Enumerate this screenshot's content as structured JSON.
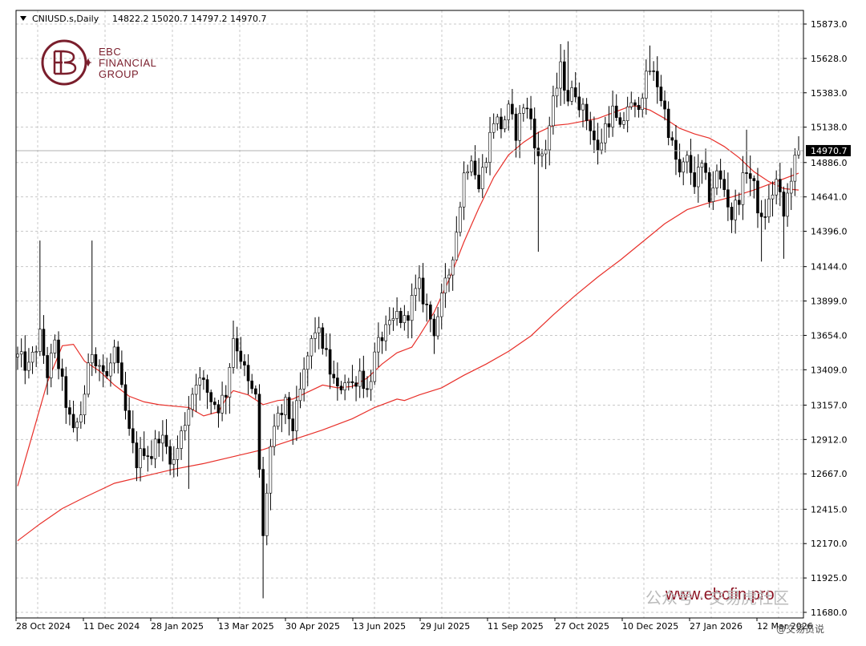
{
  "header": {
    "symbol": "CNIUSD.s,Daily",
    "ohlc": "14822.2 15020.7 14797.2 14970.7"
  },
  "logo": {
    "line1": "EBC",
    "line2": "FINANCIAL",
    "line3": "GROUP"
  },
  "watermark": {
    "url": "www.ebcfin.pro",
    "wechat": "公众号 · 交易虎社区",
    "weibo": "@交易员说"
  },
  "colors": {
    "candles": "#000000",
    "ma_fast": "#e8302a",
    "ma_slow": "#e8302a",
    "grid": "#c8c8c8",
    "current_price_line": "#b0b0b0",
    "current_price_box": "#000000",
    "logo": "#7a1e2c"
  },
  "chart_data": {
    "type": "candlestick",
    "symbol": "CNIUSD.s",
    "timeframe": "Daily",
    "current_price": 14970.7,
    "current_price_label": "14970.7",
    "ylim": [
      11680,
      15980
    ],
    "y_ticks": [
      "15873.0",
      "15628.0",
      "15383.0",
      "15138.0",
      "14886.0",
      "14641.0",
      "14396.0",
      "14144.0",
      "13899.0",
      "13654.0",
      "13409.0",
      "13157.0",
      "12912.0",
      "12667.0",
      "12415.0",
      "12170.0",
      "11925.0",
      "11680.0"
    ],
    "y_tick_values": [
      15873,
      15628,
      15383,
      15138,
      14886,
      14641,
      14396,
      14144,
      13899,
      13654,
      13409,
      13157,
      12912,
      12667,
      12415,
      12170,
      11925,
      11680
    ],
    "x_ticks": [
      "28 Oct 2024",
      "11 Dec 2024",
      "28 Jan 2025",
      "13 Mar 2025",
      "30 Apr 2025",
      "13 Jun 2025",
      "29 Jul 2025",
      "11 Sep 2025",
      "27 Oct 2025",
      "10 Dec 2025",
      "27 Jan 2026",
      "12 Mar 2026"
    ],
    "grid": true,
    "close_path": [
      [
        0,
        13500
      ],
      [
        3,
        13420
      ],
      [
        6,
        13650
      ],
      [
        8,
        13380
      ],
      [
        10,
        13580
      ],
      [
        12,
        13300
      ],
      [
        14,
        13050
      ],
      [
        15,
        12950
      ],
      [
        17,
        13100
      ],
      [
        18,
        13250
      ],
      [
        20,
        13550
      ],
      [
        22,
        13450
      ],
      [
        24,
        13350
      ],
      [
        26,
        13550
      ],
      [
        28,
        13250
      ],
      [
        30,
        12950
      ],
      [
        32,
        12750
      ],
      [
        34,
        12850
      ],
      [
        36,
        12800
      ],
      [
        38,
        12950
      ],
      [
        40,
        12850
      ],
      [
        42,
        12750
      ],
      [
        44,
        12950
      ],
      [
        46,
        13150
      ],
      [
        48,
        13350
      ],
      [
        50,
        13300
      ],
      [
        52,
        13200
      ],
      [
        54,
        13150
      ],
      [
        56,
        13250
      ],
      [
        58,
        13650
      ],
      [
        60,
        13500
      ],
      [
        62,
        13300
      ],
      [
        64,
        13200
      ],
      [
        65,
        12700
      ],
      [
        66,
        12200
      ],
      [
        67,
        12550
      ],
      [
        68,
        12850
      ],
      [
        70,
        13050
      ],
      [
        72,
        13150
      ],
      [
        74,
        13000
      ],
      [
        76,
        13250
      ],
      [
        78,
        13500
      ],
      [
        80,
        13700
      ],
      [
        82,
        13600
      ],
      [
        84,
        13400
      ],
      [
        86,
        13250
      ],
      [
        88,
        13350
      ],
      [
        90,
        13300
      ],
      [
        92,
        13400
      ],
      [
        94,
        13250
      ],
      [
        96,
        13500
      ],
      [
        98,
        13650
      ],
      [
        100,
        13700
      ],
      [
        102,
        13800
      ],
      [
        104,
        13750
      ],
      [
        106,
        13900
      ],
      [
        108,
        14000
      ],
      [
        110,
        13850
      ],
      [
        112,
        13700
      ],
      [
        114,
        13900
      ],
      [
        116,
        14100
      ],
      [
        118,
        14400
      ],
      [
        120,
        14800
      ],
      [
        122,
        14950
      ],
      [
        124,
        14700
      ],
      [
        126,
        14950
      ],
      [
        128,
        15200
      ],
      [
        130,
        15150
      ],
      [
        132,
        15250
      ],
      [
        134,
        15100
      ],
      [
        136,
        15300
      ],
      [
        138,
        15200
      ],
      [
        140,
        14900
      ],
      [
        142,
        15000
      ],
      [
        144,
        15300
      ],
      [
        146,
        15550
      ],
      [
        148,
        15350
      ],
      [
        150,
        15400
      ],
      [
        152,
        15250
      ],
      [
        154,
        15150
      ],
      [
        156,
        14950
      ],
      [
        158,
        15150
      ],
      [
        160,
        15250
      ],
      [
        162,
        15100
      ],
      [
        164,
        15300
      ],
      [
        166,
        15250
      ],
      [
        168,
        15400
      ],
      [
        170,
        15550
      ],
      [
        172,
        15450
      ],
      [
        174,
        15250
      ],
      [
        176,
        15000
      ],
      [
        178,
        14800
      ],
      [
        180,
        14900
      ],
      [
        182,
        14750
      ],
      [
        184,
        14850
      ],
      [
        186,
        14650
      ],
      [
        188,
        14800
      ],
      [
        190,
        14700
      ],
      [
        192,
        14500
      ],
      [
        194,
        14650
      ],
      [
        196,
        14850
      ],
      [
        198,
        14700
      ],
      [
        200,
        14450
      ],
      [
        202,
        14600
      ],
      [
        204,
        14750
      ],
      [
        206,
        14500
      ],
      [
        208,
        14800
      ],
      [
        210,
        14970.7
      ]
    ],
    "series": [
      {
        "name": "",
        "path": [
          [
            0,
            12580
          ],
          [
            4,
            12950
          ],
          [
            8,
            13320
          ],
          [
            12,
            13580
          ],
          [
            15,
            13590
          ],
          [
            18,
            13470
          ],
          [
            22,
            13400
          ],
          [
            26,
            13300
          ],
          [
            30,
            13220
          ],
          [
            34,
            13180
          ],
          [
            38,
            13160
          ],
          [
            42,
            13150
          ],
          [
            46,
            13140
          ],
          [
            50,
            13080
          ],
          [
            54,
            13110
          ],
          [
            56,
            13200
          ],
          [
            58,
            13260
          ],
          [
            62,
            13230
          ],
          [
            66,
            13160
          ],
          [
            70,
            13190
          ],
          [
            74,
            13200
          ],
          [
            78,
            13250
          ],
          [
            82,
            13300
          ],
          [
            86,
            13280
          ],
          [
            90,
            13290
          ],
          [
            94,
            13350
          ],
          [
            98,
            13450
          ],
          [
            102,
            13530
          ],
          [
            106,
            13570
          ],
          [
            108,
            13650
          ],
          [
            112,
            13820
          ],
          [
            116,
            14050
          ],
          [
            120,
            14320
          ],
          [
            124,
            14560
          ],
          [
            128,
            14780
          ],
          [
            132,
            14940
          ],
          [
            136,
            15030
          ],
          [
            140,
            15100
          ],
          [
            144,
            15150
          ],
          [
            148,
            15160
          ],
          [
            152,
            15180
          ],
          [
            156,
            15200
          ],
          [
            160,
            15240
          ],
          [
            164,
            15280
          ],
          [
            166,
            15290
          ],
          [
            170,
            15260
          ],
          [
            174,
            15200
          ],
          [
            178,
            15130
          ],
          [
            182,
            15090
          ],
          [
            186,
            15060
          ],
          [
            190,
            15000
          ],
          [
            194,
            14920
          ],
          [
            198,
            14820
          ],
          [
            202,
            14750
          ],
          [
            206,
            14700
          ],
          [
            210,
            14690
          ]
        ]
      },
      {
        "name": "",
        "path": [
          [
            0,
            12190
          ],
          [
            6,
            12310
          ],
          [
            12,
            12420
          ],
          [
            18,
            12500
          ],
          [
            26,
            12600
          ],
          [
            34,
            12650
          ],
          [
            42,
            12700
          ],
          [
            50,
            12740
          ],
          [
            58,
            12790
          ],
          [
            66,
            12840
          ],
          [
            74,
            12910
          ],
          [
            82,
            12980
          ],
          [
            90,
            13060
          ],
          [
            96,
            13140
          ],
          [
            102,
            13200
          ],
          [
            104,
            13190
          ],
          [
            108,
            13230
          ],
          [
            114,
            13280
          ],
          [
            120,
            13370
          ],
          [
            126,
            13450
          ],
          [
            132,
            13540
          ],
          [
            138,
            13650
          ],
          [
            144,
            13800
          ],
          [
            150,
            13940
          ],
          [
            156,
            14070
          ],
          [
            162,
            14190
          ],
          [
            168,
            14320
          ],
          [
            174,
            14450
          ],
          [
            180,
            14550
          ],
          [
            186,
            14600
          ],
          [
            192,
            14640
          ],
          [
            198,
            14690
          ],
          [
            204,
            14750
          ],
          [
            210,
            14810
          ]
        ]
      }
    ]
  }
}
